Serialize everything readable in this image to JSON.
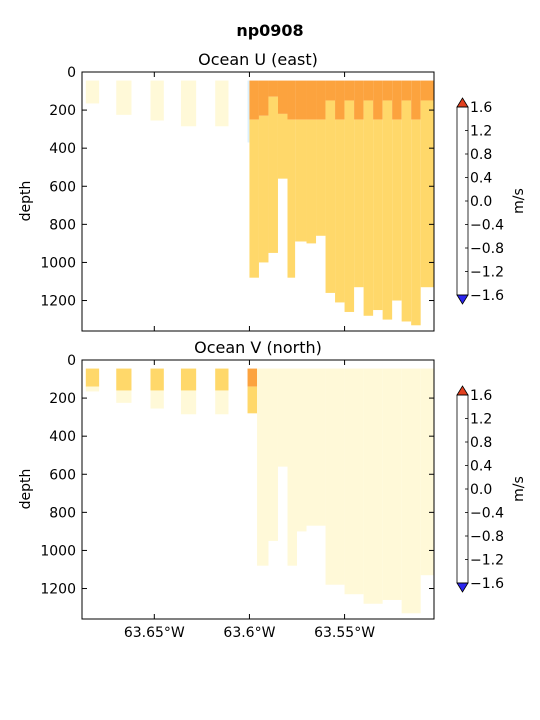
{
  "figure": {
    "suptitle": "np0908"
  },
  "colors": {
    "levels": [
      -1.6,
      -1.2,
      -0.8,
      -0.4,
      0.0,
      0.4,
      0.8,
      1.2,
      1.6
    ],
    "fills": [
      "#3a4df5",
      "#6193f2",
      "#a6d0f4",
      "#dcf0fb",
      "#fff9d8",
      "#ffd86a",
      "#fca33e",
      "#f3682a"
    ],
    "under": "#2b25f0",
    "over": "#e2401f"
  },
  "chart_data": [
    {
      "type": "heatmap",
      "title": "Ocean U (east)",
      "xlabel": "",
      "ylabel": "depth",
      "xlim": [
        -63.688,
        -63.503
      ],
      "ylim": [
        1360,
        0
      ],
      "yticks": [
        0,
        200,
        400,
        600,
        800,
        1000,
        1200
      ],
      "xticks": [],
      "colorbar": {
        "label": "m/s",
        "ticks": [
          "1.6",
          "1.2",
          "0.8",
          "0.4",
          "0.0",
          "−0.4",
          "−0.8",
          "−1.2",
          "−1.6"
        ]
      },
      "columns": [
        {
          "x0": -63.686,
          "x1": -63.679,
          "bottom": 165,
          "bands": [
            {
              "top": 45,
              "bottom": 165,
              "v": 0.2
            }
          ]
        },
        {
          "x0": -63.67,
          "x1": -63.662,
          "bottom": 225,
          "bands": [
            {
              "top": 45,
              "bottom": 225,
              "v": 0.2
            }
          ]
        },
        {
          "x0": -63.652,
          "x1": -63.645,
          "bottom": 255,
          "bands": [
            {
              "top": 45,
              "bottom": 255,
              "v": 0.2
            }
          ]
        },
        {
          "x0": -63.636,
          "x1": -63.628,
          "bottom": 285,
          "bands": [
            {
              "top": 45,
              "bottom": 285,
              "v": 0.2
            }
          ]
        },
        {
          "x0": -63.618,
          "x1": -63.611,
          "bottom": 285,
          "bands": [
            {
              "top": 45,
              "bottom": 285,
              "v": 0.2
            }
          ]
        },
        {
          "x0": -63.601,
          "x1": -63.6,
          "bottom": 370,
          "bands": [
            {
              "top": 45,
              "bottom": 370,
              "v": -0.2
            }
          ]
        },
        {
          "x0": -63.6,
          "x1": -63.595,
          "bottom": 1080,
          "bands": [
            {
              "top": 45,
              "bottom": 250,
              "v": 1.0
            },
            {
              "top": 250,
              "bottom": 1080,
              "v": 0.6
            }
          ]
        },
        {
          "x0": -63.595,
          "x1": -63.59,
          "bottom": 1000,
          "bands": [
            {
              "top": 45,
              "bottom": 230,
              "v": 1.0
            },
            {
              "top": 230,
              "bottom": 1000,
              "v": 0.6
            }
          ]
        },
        {
          "x0": -63.59,
          "x1": -63.585,
          "bottom": 950,
          "bands": [
            {
              "top": 45,
              "bottom": 130,
              "v": 1.0
            },
            {
              "top": 130,
              "bottom": 950,
              "v": 0.6
            }
          ]
        },
        {
          "x0": -63.585,
          "x1": -63.58,
          "bottom": 560,
          "bands": [
            {
              "top": 45,
              "bottom": 220,
              "v": 1.0
            },
            {
              "top": 220,
              "bottom": 560,
              "v": 0.6
            }
          ]
        },
        {
          "x0": -63.58,
          "x1": -63.576,
          "bottom": 1080,
          "bands": [
            {
              "top": 45,
              "bottom": 250,
              "v": 1.0
            },
            {
              "top": 250,
              "bottom": 1080,
              "v": 0.6
            }
          ]
        },
        {
          "x0": -63.576,
          "x1": -63.57,
          "bottom": 890,
          "bands": [
            {
              "top": 45,
              "bottom": 250,
              "v": 1.0
            },
            {
              "top": 250,
              "bottom": 890,
              "v": 0.6
            }
          ]
        },
        {
          "x0": -63.57,
          "x1": -63.565,
          "bottom": 900,
          "bands": [
            {
              "top": 45,
              "bottom": 250,
              "v": 1.0
            },
            {
              "top": 250,
              "bottom": 900,
              "v": 0.6
            }
          ]
        },
        {
          "x0": -63.565,
          "x1": -63.56,
          "bottom": 860,
          "bands": [
            {
              "top": 45,
              "bottom": 250,
              "v": 1.0
            },
            {
              "top": 250,
              "bottom": 860,
              "v": 0.6
            }
          ]
        },
        {
          "x0": -63.56,
          "x1": -63.555,
          "bottom": 1160,
          "bands": [
            {
              "top": 45,
              "bottom": 150,
              "v": 1.0
            },
            {
              "top": 150,
              "bottom": 1160,
              "v": 0.6
            }
          ]
        },
        {
          "x0": -63.555,
          "x1": -63.55,
          "bottom": 1210,
          "bands": [
            {
              "top": 45,
              "bottom": 250,
              "v": 1.0
            },
            {
              "top": 250,
              "bottom": 1210,
              "v": 0.6
            }
          ]
        },
        {
          "x0": -63.55,
          "x1": -63.545,
          "bottom": 1260,
          "bands": [
            {
              "top": 45,
              "bottom": 150,
              "v": 1.0
            },
            {
              "top": 150,
              "bottom": 1260,
              "v": 0.6
            }
          ]
        },
        {
          "x0": -63.545,
          "x1": -63.54,
          "bottom": 1130,
          "bands": [
            {
              "top": 45,
              "bottom": 250,
              "v": 1.0
            },
            {
              "top": 250,
              "bottom": 1130,
              "v": 0.6
            }
          ]
        },
        {
          "x0": -63.54,
          "x1": -63.535,
          "bottom": 1280,
          "bands": [
            {
              "top": 45,
              "bottom": 150,
              "v": 1.0
            },
            {
              "top": 150,
              "bottom": 1280,
              "v": 0.6
            }
          ]
        },
        {
          "x0": -63.535,
          "x1": -63.53,
          "bottom": 1250,
          "bands": [
            {
              "top": 45,
              "bottom": 250,
              "v": 1.0
            },
            {
              "top": 250,
              "bottom": 1250,
              "v": 0.6
            }
          ]
        },
        {
          "x0": -63.53,
          "x1": -63.525,
          "bottom": 1300,
          "bands": [
            {
              "top": 45,
              "bottom": 150,
              "v": 1.0
            },
            {
              "top": 150,
              "bottom": 1300,
              "v": 0.6
            }
          ]
        },
        {
          "x0": -63.525,
          "x1": -63.52,
          "bottom": 1200,
          "bands": [
            {
              "top": 45,
              "bottom": 250,
              "v": 1.0
            },
            {
              "top": 250,
              "bottom": 1200,
              "v": 0.6
            }
          ]
        },
        {
          "x0": -63.52,
          "x1": -63.515,
          "bottom": 1310,
          "bands": [
            {
              "top": 45,
              "bottom": 150,
              "v": 1.0
            },
            {
              "top": 150,
              "bottom": 1310,
              "v": 0.6
            }
          ]
        },
        {
          "x0": -63.515,
          "x1": -63.51,
          "bottom": 1330,
          "bands": [
            {
              "top": 45,
              "bottom": 250,
              "v": 1.0
            },
            {
              "top": 250,
              "bottom": 1330,
              "v": 0.6
            }
          ]
        },
        {
          "x0": -63.51,
          "x1": -63.503,
          "bottom": 1130,
          "bands": [
            {
              "top": 45,
              "bottom": 150,
              "v": 1.0
            },
            {
              "top": 150,
              "bottom": 1130,
              "v": 0.6
            }
          ]
        }
      ]
    },
    {
      "type": "heatmap",
      "title": "Ocean V (north)",
      "xlabel": "",
      "ylabel": "depth",
      "xlim": [
        -63.688,
        -63.503
      ],
      "ylim": [
        1360,
        0
      ],
      "yticks": [
        0,
        200,
        400,
        600,
        800,
        1000,
        1200
      ],
      "xticks": [
        "63.65°W",
        "63.6°W",
        "63.55°W"
      ],
      "xtick_values": [
        -63.65,
        -63.6,
        -63.55
      ],
      "colorbar": {
        "label": "m/s",
        "ticks": [
          "1.6",
          "1.2",
          "0.8",
          "0.4",
          "0.0",
          "−0.4",
          "−0.8",
          "−1.2",
          "−1.6"
        ]
      },
      "columns": [
        {
          "x0": -63.686,
          "x1": -63.679,
          "bottom": 165,
          "bands": [
            {
              "top": 45,
              "bottom": 140,
              "v": 0.6
            },
            {
              "top": 140,
              "bottom": 165,
              "v": 0.2
            }
          ]
        },
        {
          "x0": -63.67,
          "x1": -63.662,
          "bottom": 225,
          "bands": [
            {
              "top": 45,
              "bottom": 160,
              "v": 0.6
            },
            {
              "top": 160,
              "bottom": 225,
              "v": 0.2
            }
          ]
        },
        {
          "x0": -63.652,
          "x1": -63.645,
          "bottom": 255,
          "bands": [
            {
              "top": 45,
              "bottom": 160,
              "v": 0.6
            },
            {
              "top": 160,
              "bottom": 255,
              "v": 0.2
            }
          ]
        },
        {
          "x0": -63.636,
          "x1": -63.628,
          "bottom": 285,
          "bands": [
            {
              "top": 45,
              "bottom": 160,
              "v": 0.6
            },
            {
              "top": 160,
              "bottom": 285,
              "v": 0.2
            }
          ]
        },
        {
          "x0": -63.618,
          "x1": -63.611,
          "bottom": 285,
          "bands": [
            {
              "top": 45,
              "bottom": 160,
              "v": 0.6
            },
            {
              "top": 160,
              "bottom": 285,
              "v": 0.2
            }
          ]
        },
        {
          "x0": -63.601,
          "x1": -63.596,
          "bottom": 280,
          "bands": [
            {
              "top": 45,
              "bottom": 140,
              "v": 1.0
            },
            {
              "top": 140,
              "bottom": 280,
              "v": 0.6
            }
          ]
        },
        {
          "x0": -63.596,
          "x1": -63.59,
          "bottom": 1080,
          "bands": [
            {
              "top": 45,
              "bottom": 1080,
              "v": 0.2
            }
          ]
        },
        {
          "x0": -63.59,
          "x1": -63.585,
          "bottom": 950,
          "bands": [
            {
              "top": 45,
              "bottom": 950,
              "v": 0.2
            }
          ]
        },
        {
          "x0": -63.585,
          "x1": -63.58,
          "bottom": 560,
          "bands": [
            {
              "top": 45,
              "bottom": 560,
              "v": 0.2
            }
          ]
        },
        {
          "x0": -63.58,
          "x1": -63.575,
          "bottom": 1080,
          "bands": [
            {
              "top": 45,
              "bottom": 1080,
              "v": 0.2
            }
          ]
        },
        {
          "x0": -63.575,
          "x1": -63.57,
          "bottom": 900,
          "bands": [
            {
              "top": 45,
              "bottom": 900,
              "v": 0.2
            }
          ]
        },
        {
          "x0": -63.57,
          "x1": -63.56,
          "bottom": 870,
          "bands": [
            {
              "top": 45,
              "bottom": 870,
              "v": 0.2
            }
          ]
        },
        {
          "x0": -63.56,
          "x1": -63.55,
          "bottom": 1180,
          "bands": [
            {
              "top": 45,
              "bottom": 1180,
              "v": 0.2
            }
          ]
        },
        {
          "x0": -63.55,
          "x1": -63.54,
          "bottom": 1230,
          "bands": [
            {
              "top": 45,
              "bottom": 1230,
              "v": 0.2
            }
          ]
        },
        {
          "x0": -63.54,
          "x1": -63.53,
          "bottom": 1280,
          "bands": [
            {
              "top": 45,
              "bottom": 1280,
              "v": 0.2
            }
          ]
        },
        {
          "x0": -63.53,
          "x1": -63.52,
          "bottom": 1260,
          "bands": [
            {
              "top": 45,
              "bottom": 1260,
              "v": 0.2
            }
          ]
        },
        {
          "x0": -63.52,
          "x1": -63.51,
          "bottom": 1330,
          "bands": [
            {
              "top": 45,
              "bottom": 1330,
              "v": 0.2
            }
          ]
        },
        {
          "x0": -63.51,
          "x1": -63.503,
          "bottom": 1130,
          "bands": [
            {
              "top": 45,
              "bottom": 1130,
              "v": 0.2
            }
          ]
        }
      ]
    }
  ]
}
